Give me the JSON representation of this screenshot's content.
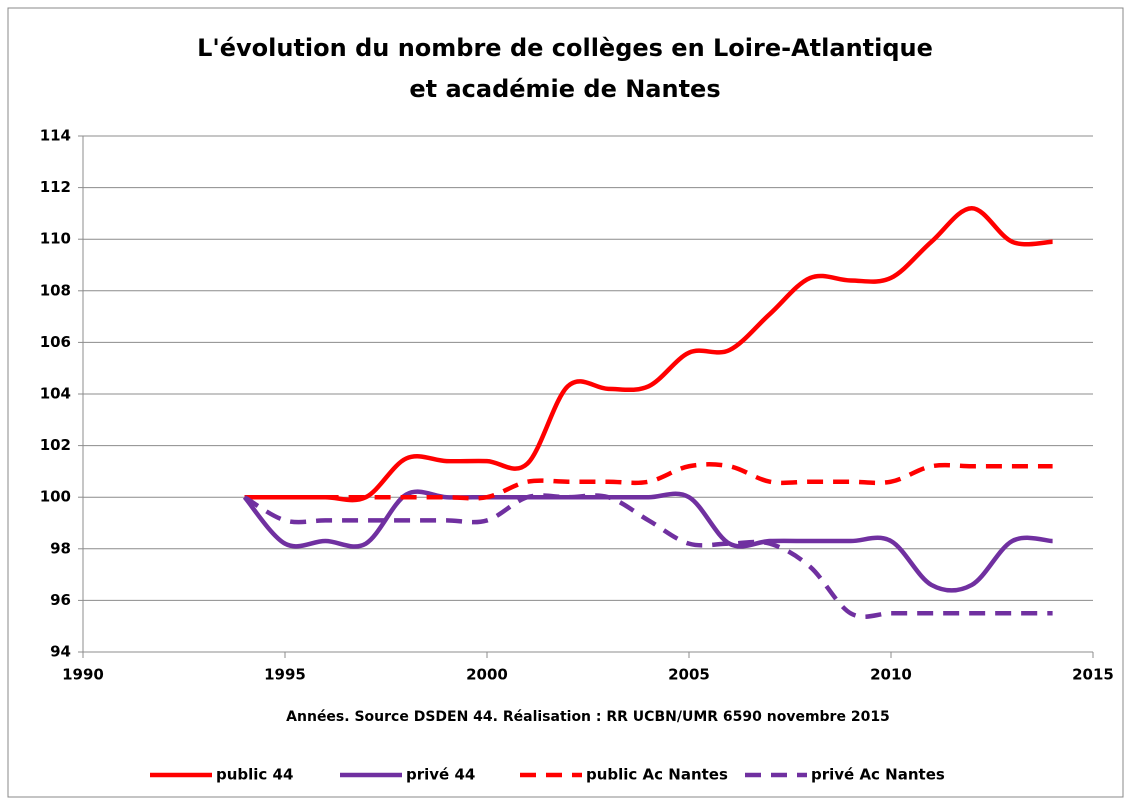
{
  "chart_data": {
    "type": "line",
    "title": [
      "L'évolution du nombre de collèges en Loire-Atlantique",
      "et académie de Nantes"
    ],
    "x_label": "Années. Source DSDEN 44. Réalisation : RR UCBN/UMR  6590 novembre 2015",
    "x": [
      1994,
      1995,
      1996,
      1997,
      1998,
      1999,
      2000,
      2001,
      2002,
      2003,
      2004,
      2005,
      2006,
      2007,
      2008,
      2009,
      2010,
      2011,
      2012,
      2013,
      2014
    ],
    "series": [
      {
        "name": "public 44",
        "color": "#ff0000",
        "dashed": false,
        "values": [
          100,
          100,
          100,
          100,
          101.5,
          101.4,
          101.4,
          101.3,
          104.3,
          104.2,
          104.3,
          105.6,
          105.7,
          107.1,
          108.5,
          108.4,
          108.5,
          109.9,
          111.2,
          109.9,
          109.9
        ]
      },
      {
        "name": "privé 44",
        "color": "#7030a0",
        "dashed": false,
        "values": [
          100,
          98.2,
          98.3,
          98.2,
          100.1,
          100,
          100,
          100,
          100,
          100,
          100,
          100,
          98.2,
          98.3,
          98.3,
          98.3,
          98.3,
          96.6,
          96.6,
          98.3,
          98.3
        ]
      },
      {
        "name": "public Ac Nantes",
        "color": "#ff0000",
        "dashed": true,
        "values": [
          100,
          100,
          100,
          100,
          100,
          100,
          100,
          100.6,
          100.6,
          100.6,
          100.6,
          101.2,
          101.2,
          100.6,
          100.6,
          100.6,
          100.6,
          101.2,
          101.2,
          101.2,
          101.2
        ]
      },
      {
        "name": "privé Ac Nantes",
        "color": "#7030a0",
        "dashed": true,
        "values": [
          100,
          99.1,
          99.1,
          99.1,
          99.1,
          99.1,
          99.1,
          100,
          100,
          100,
          99.1,
          98.2,
          98.2,
          98.2,
          97.3,
          95.5,
          95.5,
          95.5,
          95.5,
          95.5,
          95.5
        ]
      }
    ],
    "xlim": [
      1990,
      2015
    ],
    "xticks": [
      1990,
      1995,
      2000,
      2005,
      2010,
      2015
    ],
    "ylim": [
      94,
      114
    ],
    "yticks": [
      94,
      96,
      98,
      100,
      102,
      104,
      106,
      108,
      110,
      112,
      114
    ],
    "grid": true,
    "legend": "bottom"
  }
}
